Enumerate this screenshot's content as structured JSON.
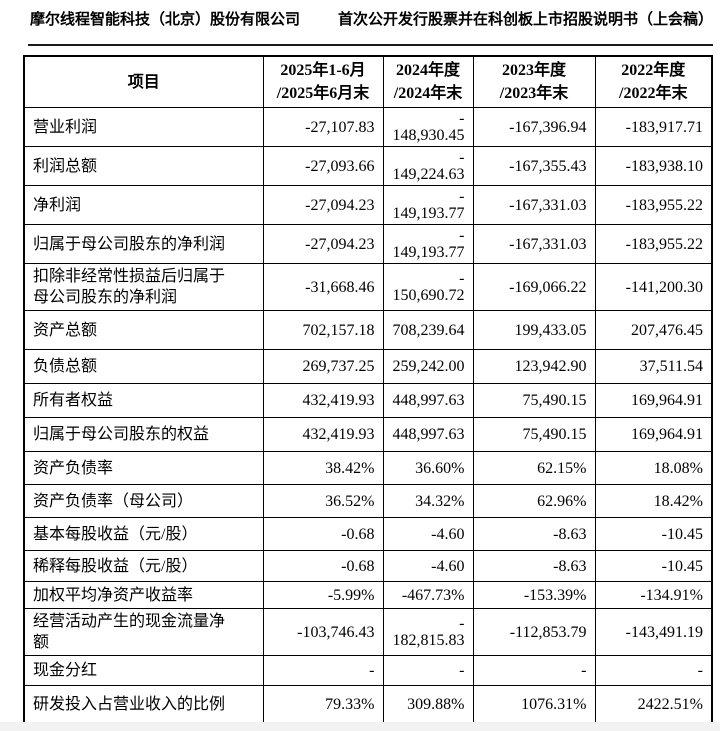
{
  "page_header": {
    "company": "摩尔线程智能科技（北京）股份有限公司",
    "document": "首次公开发行股票并在科创板上市招股说明书（上会稿）"
  },
  "table": {
    "columns": [
      "项目",
      "2025年1-6月\n/2025年6月末",
      "2024年度\n/2024年末",
      "2023年度\n/2023年末",
      "2022年度\n/2022年末"
    ],
    "rows": [
      {
        "label": "营业利润",
        "values": [
          "-27,107.83",
          "-\n148,930.45",
          "-167,396.94",
          "-183,917.71"
        ]
      },
      {
        "label": "利润总额",
        "values": [
          "-27,093.66",
          "-\n149,224.63",
          "-167,355.43",
          "-183,938.10"
        ]
      },
      {
        "label": "净利润",
        "values": [
          "-27,094.23",
          "-\n149,193.77",
          "-167,331.03",
          "-183,955.22"
        ]
      },
      {
        "label": "归属于母公司股东的净利润",
        "values": [
          "-27,094.23",
          "-\n149,193.77",
          "-167,331.03",
          "-183,955.22"
        ]
      },
      {
        "label": "扣除非经常性损益后归属于\n母公司股东的净利润",
        "values": [
          "-31,668.46",
          "-\n150,690.72",
          "-169,066.22",
          "-141,200.30"
        ]
      },
      {
        "label": "资产总额",
        "values": [
          "702,157.18",
          "708,239.64",
          "199,433.05",
          "207,476.45"
        ]
      },
      {
        "label": "负债总额",
        "values": [
          "269,737.25",
          "259,242.00",
          "123,942.90",
          "37,511.54"
        ]
      },
      {
        "label": "所有者权益",
        "values": [
          "432,419.93",
          "448,997.63",
          "75,490.15",
          "169,964.91"
        ]
      },
      {
        "label": "归属于母公司股东的权益",
        "values": [
          "432,419.93",
          "448,997.63",
          "75,490.15",
          "169,964.91"
        ]
      },
      {
        "label": "资产负债率",
        "values": [
          "38.42%",
          "36.60%",
          "62.15%",
          "18.08%"
        ]
      },
      {
        "label": "资产负债率（母公司）",
        "values": [
          "36.52%",
          "34.32%",
          "62.96%",
          "18.42%"
        ]
      },
      {
        "label": "基本每股收益（元/股）",
        "values": [
          "-0.68",
          "-4.60",
          "-8.63",
          "-10.45"
        ]
      },
      {
        "label": "稀释每股收益（元/股）",
        "values": [
          "-0.68",
          "-4.60",
          "-8.63",
          "-10.45"
        ]
      },
      {
        "label": "加权平均净资产收益率",
        "values": [
          "-5.99%",
          "-467.73%",
          "-153.39%",
          "-134.91%"
        ]
      },
      {
        "label": "经营活动产生的现金流量净\n额",
        "values": [
          "-103,746.43",
          "-\n182,815.83",
          "-112,853.79",
          "-143,491.19"
        ]
      },
      {
        "label": "现金分红",
        "values": [
          "-",
          "-",
          "-",
          "-"
        ]
      },
      {
        "label": "研发投入占营业收入的比例",
        "values": [
          "79.33%",
          "309.88%",
          "1076.31%",
          "2422.51%"
        ]
      }
    ]
  }
}
